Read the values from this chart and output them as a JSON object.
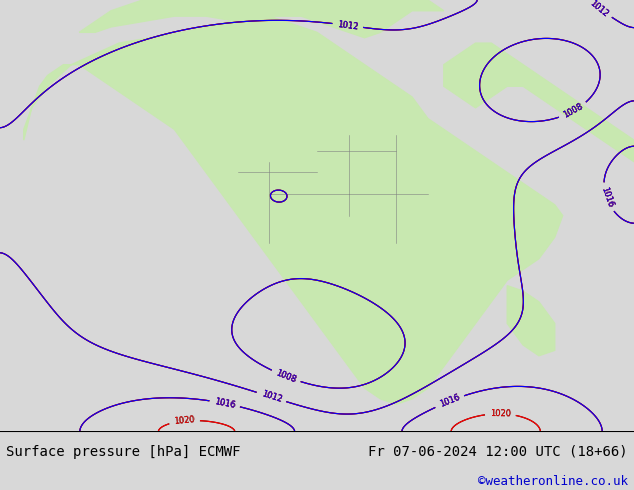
{
  "title_left": "Surface pressure [hPa] ECMWF",
  "title_right": "Fr 07-06-2024 12:00 UTC (18+66)",
  "credit": "©weatheronline.co.uk",
  "bg_color": "#d8d8d8",
  "land_color": "#c8e8b0",
  "water_color": "#d8d8d8",
  "bottom_bar_color": "#ffffff",
  "bottom_text_color": "#000000",
  "credit_color": "#0000cc",
  "figsize": [
    6.34,
    4.9
  ],
  "dpi": 100
}
